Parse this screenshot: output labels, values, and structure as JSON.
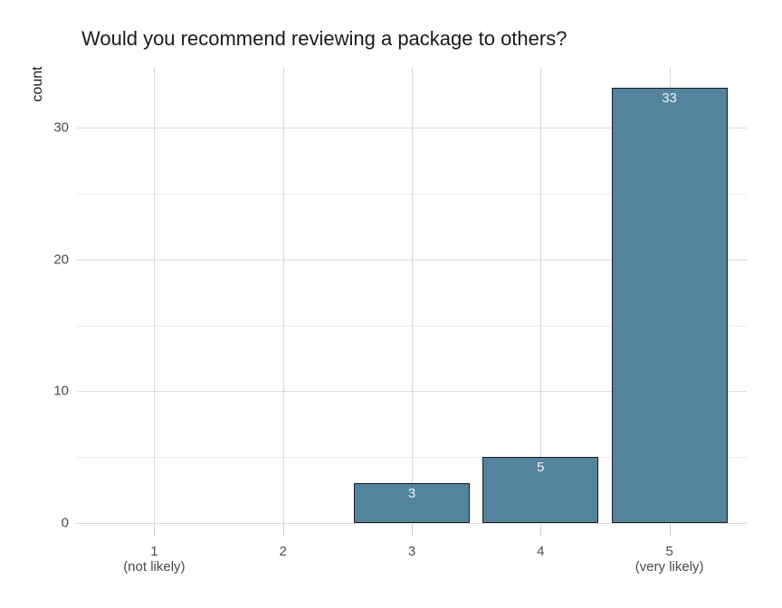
{
  "chart_data": {
    "type": "bar",
    "title": "Would you recommend reviewing a package to others?",
    "xlabel": "",
    "ylabel": "count",
    "categories": [
      "1",
      "2",
      "3",
      "4",
      "5"
    ],
    "category_sublabels": [
      "(not likely)",
      "",
      "",
      "",
      "(very likely)"
    ],
    "values": [
      0,
      0,
      3,
      5,
      33
    ],
    "bar_labels": [
      "",
      "",
      "3",
      "5",
      "33"
    ],
    "ylim": [
      0,
      34.6
    ],
    "y_major_ticks": [
      0,
      10,
      20,
      30
    ],
    "y_minor_ticks": [
      5,
      15,
      25
    ],
    "grid": "major and minor horizontal, vertical at category centers",
    "legend_position": "none",
    "colors": {
      "bar_fill": "#53839e",
      "bar_border": "#1a1a1a",
      "grid_major": "#d9d9d9",
      "grid_minor": "#ececec",
      "grid_vertical": "#d6d6d6",
      "tick_mark": "#d0d0d0",
      "title_text": "#1a1a1a",
      "tick_text": "#4a4a4a",
      "bar_label_text": "#f2f2f2"
    }
  }
}
